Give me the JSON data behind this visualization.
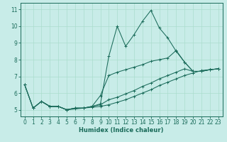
{
  "xlabel": "Humidex (Indice chaleur)",
  "bg_color": "#c8ece8",
  "grid_color": "#aaddcc",
  "line_color": "#1a6b5a",
  "xlim": [
    -0.5,
    23.5
  ],
  "ylim": [
    4.6,
    11.4
  ],
  "xticks": [
    0,
    1,
    2,
    3,
    4,
    5,
    6,
    7,
    8,
    9,
    10,
    11,
    12,
    13,
    14,
    15,
    16,
    17,
    18,
    19,
    20,
    21,
    22,
    23
  ],
  "yticks": [
    5,
    6,
    7,
    8,
    9,
    10,
    11
  ],
  "lines": [
    {
      "x": [
        0,
        1,
        2,
        3,
        4,
        5,
        6,
        7,
        8,
        9,
        10,
        11,
        12,
        13,
        14,
        15,
        16,
        17,
        18,
        19,
        20,
        21,
        22,
        23
      ],
      "y": [
        6.5,
        5.1,
        5.5,
        5.2,
        5.2,
        5.0,
        5.1,
        5.1,
        5.2,
        5.35,
        8.2,
        10.0,
        8.8,
        9.5,
        10.3,
        10.95,
        9.9,
        9.3,
        8.5,
        7.85,
        7.3,
        7.3,
        7.4,
        7.45
      ]
    },
    {
      "x": [
        0,
        1,
        2,
        3,
        4,
        5,
        6,
        7,
        8,
        9,
        10,
        11,
        12,
        13,
        14,
        15,
        16,
        17,
        18,
        19,
        20,
        21,
        22,
        23
      ],
      "y": [
        6.5,
        5.1,
        5.5,
        5.2,
        5.2,
        5.0,
        5.1,
        5.1,
        5.2,
        5.85,
        7.05,
        7.25,
        7.4,
        7.55,
        7.7,
        7.9,
        8.0,
        8.1,
        8.55,
        7.85,
        7.3,
        7.3,
        7.4,
        7.45
      ]
    },
    {
      "x": [
        0,
        1,
        2,
        3,
        4,
        5,
        6,
        7,
        8,
        9,
        10,
        11,
        12,
        13,
        14,
        15,
        16,
        17,
        18,
        19,
        20,
        21,
        22,
        23
      ],
      "y": [
        6.5,
        5.1,
        5.5,
        5.2,
        5.2,
        5.0,
        5.1,
        5.1,
        5.2,
        5.3,
        5.6,
        5.75,
        5.95,
        6.15,
        6.4,
        6.6,
        6.85,
        7.05,
        7.25,
        7.45,
        7.3,
        7.3,
        7.4,
        7.45
      ]
    },
    {
      "x": [
        2,
        3,
        4,
        5,
        6,
        7,
        8,
        9,
        10,
        11,
        12,
        13,
        14,
        15,
        16,
        17,
        18,
        19,
        20,
        21,
        22,
        23
      ],
      "y": [
        5.5,
        5.2,
        5.2,
        5.0,
        5.05,
        5.1,
        5.15,
        5.2,
        5.3,
        5.45,
        5.6,
        5.8,
        6.0,
        6.2,
        6.45,
        6.65,
        6.85,
        7.05,
        7.2,
        7.35,
        7.4,
        7.45
      ]
    }
  ]
}
